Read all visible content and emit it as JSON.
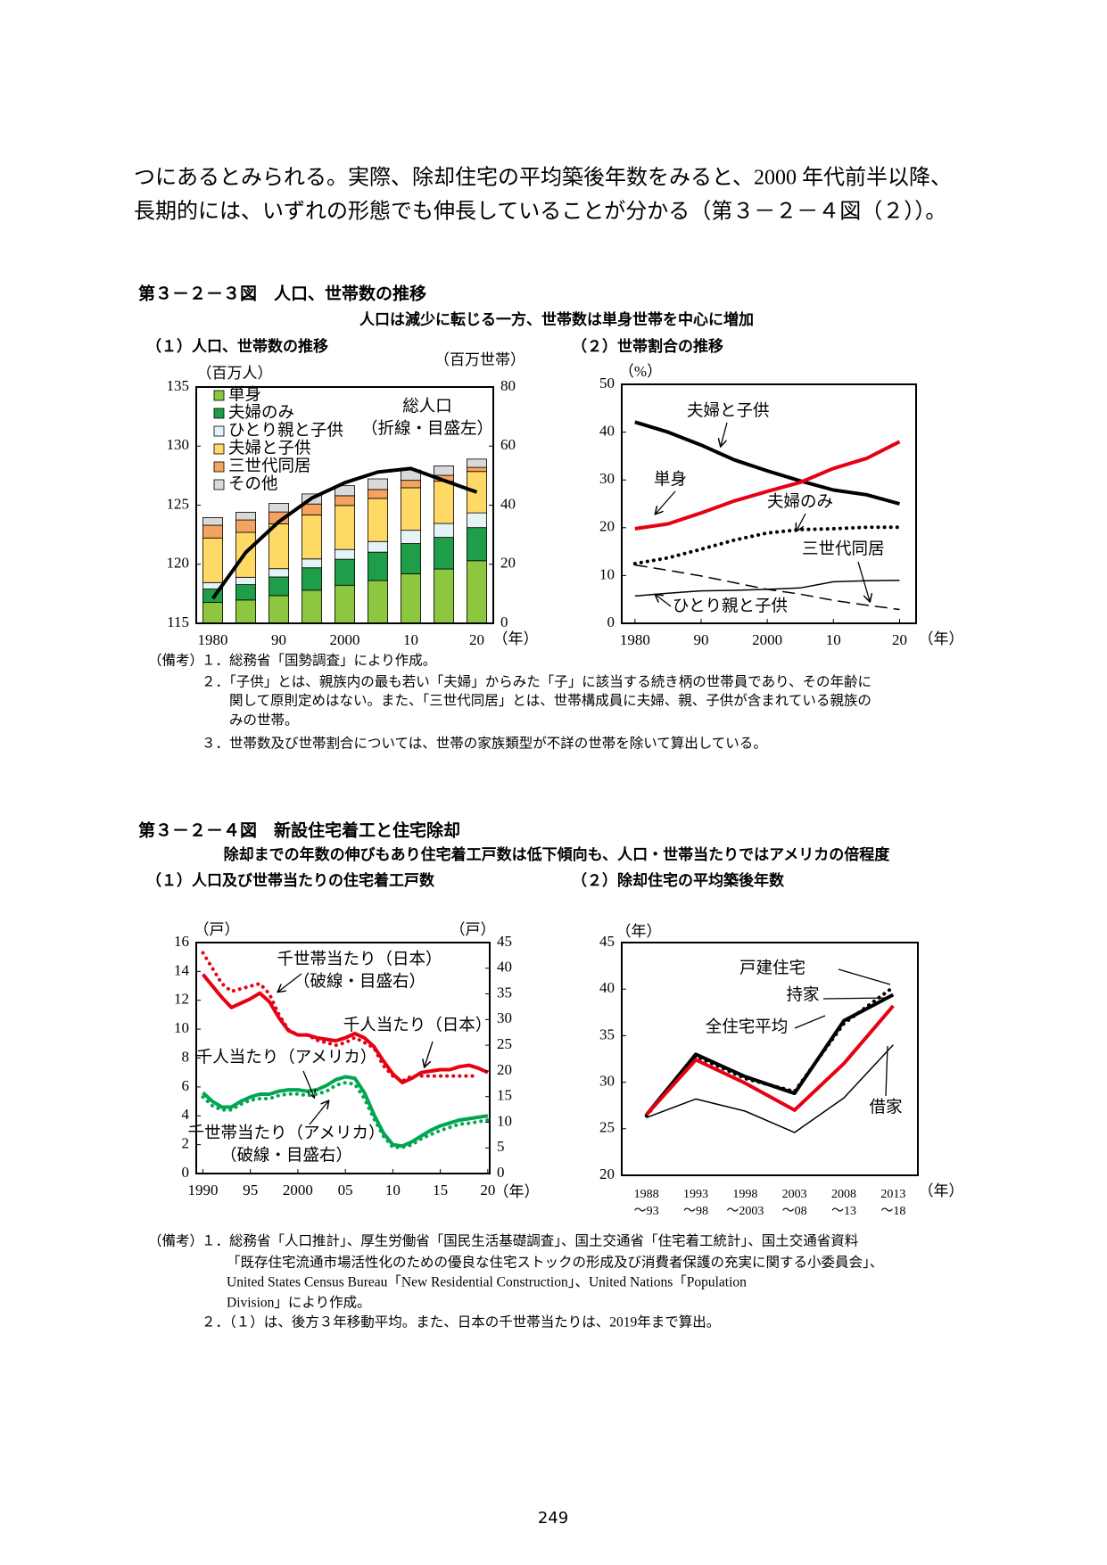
{
  "body": {
    "lines": [
      "つにあるとみられる。実際、除却住宅の平均築後年数をみると、2000 年代前半以降、",
      "長期的には、いずれの形態でも伸長していることが分かる（第３－２－４図（２））。"
    ]
  },
  "figures": [
    {
      "title": "第３－２－３図　人口、世帯数の推移",
      "subtitle": "人口は減少に転じる一方、世帯数は単身世帯を中心に増加",
      "panels": [
        "（１）人口、世帯数の推移",
        "（２）世帯割合の推移"
      ],
      "notes_label": "（備考）",
      "notes": [
        "１．総務省「国勢調査」により作成。",
        "２．「子供」とは、親族内の最も若い「夫婦」からみた「子」に該当する続き柄の世帯員であり、その年齢に",
        "関して原則定めはない。また、「三世代同居」とは、世帯構成員に夫婦、親、子供が含まれている親族の",
        "みの世帯。",
        "３．世帯数及び世帯割合については、世帯の家族類型が不詳の世帯を除いて算出している。"
      ]
    },
    {
      "title": "第３－２－４図　新設住宅着工と住宅除却",
      "subtitle": "除却までの年数の伸びもあり住宅着工戸数は低下傾向も、人口・世帯当たりではアメリカの倍程度",
      "panels": [
        "（１）人口及び世帯当たりの住宅着工戸数",
        "（２）除却住宅の平均築後年数"
      ],
      "notes_label": "（備考）",
      "notes": [
        "１．総務省「人口推計」、厚生労働省「国民生活基礎調査」、国土交通省「住宅着工統計」、国土交通省資料",
        "「既存住宅流通市場活性化のための優良な住宅ストックの形成及び消費者保護の充実に関する小委員会」、",
        "United States Census Bureau「New Residential Construction」、United Nations「Population",
        "Division」により作成。",
        "２．（１）は、後方３年移動平均。また、日本の千世帯当たりは、2019年まで算出。"
      ]
    }
  ],
  "page_number": "249",
  "chart_data": [
    {
      "type": "bar",
      "stacked": true,
      "categories": [
        "1980",
        null,
        "90",
        null,
        "2000",
        null,
        "10",
        null,
        "20"
      ],
      "ylim": [
        115,
        135
      ],
      "yticks": [
        115,
        120,
        125,
        130,
        135
      ],
      "y2lim": [
        0,
        80
      ],
      "y2ticks": [
        0,
        20,
        40,
        60,
        80
      ],
      "ylabel": "（百万人）",
      "y2label": "（百万世帯）",
      "xlabel": "（年）",
      "legend": "upper left",
      "series": [
        {
          "name": "単身",
          "color": "#8dc63f",
          "axis": "y2",
          "values": [
            7.1,
            7.9,
            9.4,
            11.2,
            12.9,
            14.5,
            16.8,
            18.4,
            21.2
          ]
        },
        {
          "name": "夫婦のみ",
          "color": "#1f9e4a",
          "axis": "y2",
          "values": [
            4.5,
            5.2,
            6.3,
            7.6,
            8.8,
            9.6,
            10.2,
            10.7,
            11.2
          ]
        },
        {
          "name": "ひとり親と子供",
          "color": "#e3f3f6",
          "axis": "y2",
          "values": [
            2.2,
            2.5,
            2.8,
            3.0,
            3.3,
            3.6,
            4.5,
            4.7,
            5.0
          ]
        },
        {
          "name": "夫婦と子供",
          "color": "#ffd966",
          "axis": "y2",
          "values": [
            15.1,
            15.2,
            15.2,
            14.9,
            14.9,
            14.6,
            14.4,
            14.3,
            14.0
          ]
        },
        {
          "name": "三世代同居",
          "color": "#f4a460",
          "axis": "y2",
          "values": [
            4.3,
            4.2,
            4.0,
            3.7,
            3.3,
            3.0,
            2.5,
            2.0,
            1.4
          ]
        },
        {
          "name": "その他",
          "color": "#d9d9d9",
          "axis": "y2",
          "values": [
            2.6,
            2.6,
            2.9,
            3.4,
            3.4,
            3.6,
            3.5,
            3.2,
            2.8
          ]
        },
        {
          "name": "総人口",
          "type": "line",
          "color": "#000000",
          "width": 4,
          "style": "solid",
          "values": [
            117.1,
            121.0,
            123.6,
            125.6,
            126.9,
            127.8,
            128.1,
            127.1,
            126.1
          ]
        }
      ],
      "annotations": [
        "（折線・目盛左）"
      ]
    },
    {
      "type": "line",
      "x": [
        1980,
        1985,
        1990,
        1995,
        2000,
        2005,
        2010,
        2015,
        2020
      ],
      "xlim": [
        1978,
        2022.5
      ],
      "xticks": [
        1980,
        {
          "value": 1990,
          "label": "90"
        },
        2000,
        {
          "value": 2010,
          "label": "10"
        },
        {
          "value": 2020,
          "label": "20"
        }
      ],
      "ylim": [
        0,
        50
      ],
      "yticks": [
        0,
        10,
        20,
        30,
        40,
        50
      ],
      "ylabel": "（%）",
      "xlabel": "（年）",
      "series": [
        {
          "name": "夫婦と子供",
          "color": "#000000",
          "width": 4,
          "style": "solid",
          "values": [
            42.1,
            40.0,
            37.3,
            34.2,
            31.9,
            29.8,
            27.9,
            26.9,
            25.0
          ]
        },
        {
          "name": "単身",
          "color": "#e60012",
          "width": 4,
          "style": "solid",
          "values": [
            19.8,
            20.8,
            23.1,
            25.6,
            27.6,
            29.5,
            32.4,
            34.5,
            38.0
          ]
        },
        {
          "name": "夫婦のみ",
          "color": "#000000",
          "width": 4,
          "style": "dotted",
          "values": [
            12.5,
            13.7,
            15.5,
            17.4,
            18.9,
            19.6,
            19.8,
            20.1,
            20.1
          ]
        },
        {
          "name": "三世代同居",
          "color": "#000000",
          "width": 1.5,
          "style": "dashed",
          "values": [
            12.2,
            11.1,
            9.9,
            8.5,
            7.1,
            6.1,
            4.8,
            3.8,
            2.9
          ]
        },
        {
          "name": "ひとり親と子供",
          "color": "#000000",
          "width": 1.5,
          "style": "solid",
          "values": [
            5.7,
            6.3,
            6.8,
            6.9,
            7.1,
            7.4,
            8.7,
            8.9,
            9.0
          ]
        }
      ]
    },
    {
      "type": "line",
      "x": [
        1990,
        1991,
        1992,
        1993,
        1994,
        1995,
        1996,
        1997,
        1998,
        1999,
        2000,
        2001,
        2002,
        2003,
        2004,
        2005,
        2006,
        2007,
        2008,
        2009,
        2010,
        2011,
        2012,
        2013,
        2014,
        2015,
        2016,
        2017,
        2018,
        2019,
        2020
      ],
      "xlim": [
        1989.3,
        2020.2
      ],
      "xticks": [
        1990,
        {
          "value": 1995,
          "label": "95"
        },
        2000,
        {
          "value": 2005,
          "label": "05"
        },
        {
          "value": 2010,
          "label": "10"
        },
        {
          "value": 2015,
          "label": "15"
        },
        {
          "value": 2020,
          "label": "20"
        }
      ],
      "ylim": [
        0,
        16
      ],
      "yticks": [
        0,
        2,
        4,
        6,
        8,
        10,
        12,
        14,
        16
      ],
      "y2lim": [
        0,
        45
      ],
      "y2ticks": [
        0,
        5,
        10,
        15,
        20,
        25,
        30,
        35,
        40,
        45
      ],
      "ylabel": "（戸）",
      "y2label": "（戸）",
      "xlabel": "（年）",
      "series": [
        {
          "name": "千人当たり（日本）",
          "color": "#e60012",
          "width": 4,
          "style": "solid",
          "values": [
            13.8,
            13.0,
            12.2,
            11.5,
            11.8,
            12.1,
            12.5,
            11.9,
            10.8,
            9.9,
            9.6,
            9.6,
            9.4,
            9.3,
            9.2,
            9.4,
            9.7,
            9.4,
            8.8,
            7.8,
            6.9,
            6.3,
            6.6,
            7.0,
            7.1,
            7.2,
            7.2,
            7.4,
            7.5,
            7.3,
            7.0
          ]
        },
        {
          "name": "千世帯当たり（日本）",
          "color": "#e60012",
          "width": 4,
          "style": "dotted",
          "axis": "y2",
          "values": [
            43.0,
            40.0,
            37.0,
            35.5,
            36.0,
            36.5,
            37.0,
            35.0,
            31.0,
            28.0,
            27.0,
            27.0,
            26.0,
            25.5,
            25.0,
            25.5,
            26.5,
            25.5,
            24.5,
            21.0,
            19.0,
            18.0,
            19.0,
            19.0,
            19.0,
            19.0,
            19.0,
            19.0,
            19.0,
            19.0,
            null
          ]
        },
        {
          "name": "千人当たり（アメリカ）",
          "color": "#00a650",
          "width": 4,
          "style": "solid",
          "values": [
            5.6,
            5.0,
            4.6,
            4.6,
            5.0,
            5.3,
            5.5,
            5.5,
            5.7,
            5.8,
            5.8,
            5.7,
            5.8,
            6.1,
            6.5,
            6.7,
            6.6,
            5.6,
            4.1,
            2.8,
            2.0,
            1.9,
            2.2,
            2.6,
            3.0,
            3.3,
            3.5,
            3.7,
            3.8,
            3.9,
            4.0
          ]
        },
        {
          "name": "千世帯当たり（アメリカ）",
          "color": "#00a650",
          "width": 4,
          "style": "dotted",
          "axis": "y2",
          "values": [
            14.9,
            13.2,
            12.4,
            12.4,
            13.5,
            14.3,
            14.6,
            14.6,
            15.2,
            15.5,
            15.5,
            15.2,
            15.5,
            16.0,
            17.2,
            17.7,
            17.4,
            14.6,
            10.7,
            7.3,
            5.1,
            5.1,
            5.6,
            6.8,
            7.6,
            8.4,
            9.0,
            9.6,
            9.8,
            10.1,
            10.4
          ]
        }
      ],
      "annotations": [
        "（破線・目盛右）",
        "（破線・目盛右）"
      ]
    },
    {
      "type": "line",
      "categories": [
        [
          "1988",
          "～93"
        ],
        [
          "1993",
          "～98"
        ],
        [
          "1998",
          "～2003"
        ],
        [
          "2003",
          "～08"
        ],
        [
          "2008",
          "～13"
        ],
        [
          "2013",
          "～18"
        ]
      ],
      "ylim": [
        20,
        45
      ],
      "yticks": [
        20,
        25,
        30,
        35,
        40,
        45
      ],
      "ylabel": "（年）",
      "xlabel": "（年）",
      "series": [
        {
          "name": "戸建住宅",
          "color": "#000000",
          "width": 4,
          "style": "dotted",
          "values": [
            26.4,
            32.8,
            30.4,
            29.0,
            36.3,
            40.2
          ]
        },
        {
          "name": "持家",
          "color": "#000000",
          "width": 4,
          "style": "solid",
          "values": [
            26.5,
            33.0,
            30.6,
            28.8,
            36.6,
            39.4
          ]
        },
        {
          "name": "全住宅平均",
          "color": "#e60012",
          "width": 4,
          "style": "solid",
          "values": [
            26.5,
            32.4,
            29.9,
            27.0,
            32.0,
            38.2
          ]
        },
        {
          "name": "借家",
          "color": "#000000",
          "width": 1.5,
          "style": "solid",
          "values": [
            26.2,
            28.2,
            26.9,
            24.6,
            28.3,
            34.0
          ]
        }
      ]
    }
  ]
}
